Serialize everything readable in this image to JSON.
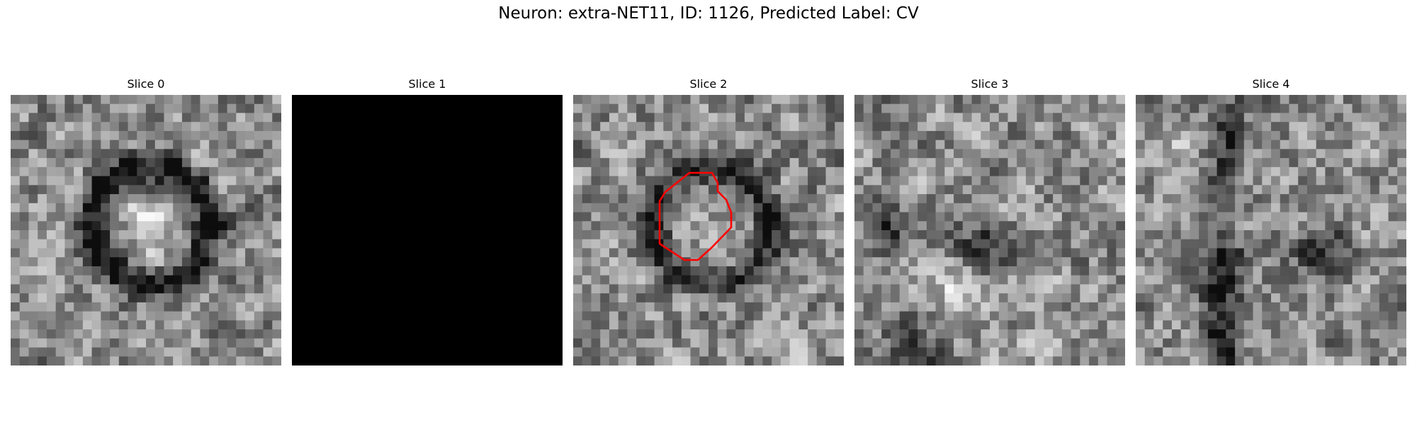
{
  "figure": {
    "title": "Neuron: extra-NET11, ID: 1126, Predicted Label: CV"
  },
  "slices": [
    {
      "title": "Slice 0",
      "fill": "noise",
      "seed": 11,
      "feature": "ring"
    },
    {
      "title": "Slice 1",
      "fill": "solid",
      "color": "#000000"
    },
    {
      "title": "Slice 2",
      "fill": "noise",
      "seed": 23,
      "feature": "ring-faint",
      "has_contour": true
    },
    {
      "title": "Slice 3",
      "fill": "noise",
      "seed": 37,
      "feature": "dark-blobs"
    },
    {
      "title": "Slice 4",
      "fill": "noise",
      "seed": 53,
      "feature": "dark-streak"
    }
  ],
  "contour": {
    "slice_index": 2,
    "color": "#ff0000"
  }
}
